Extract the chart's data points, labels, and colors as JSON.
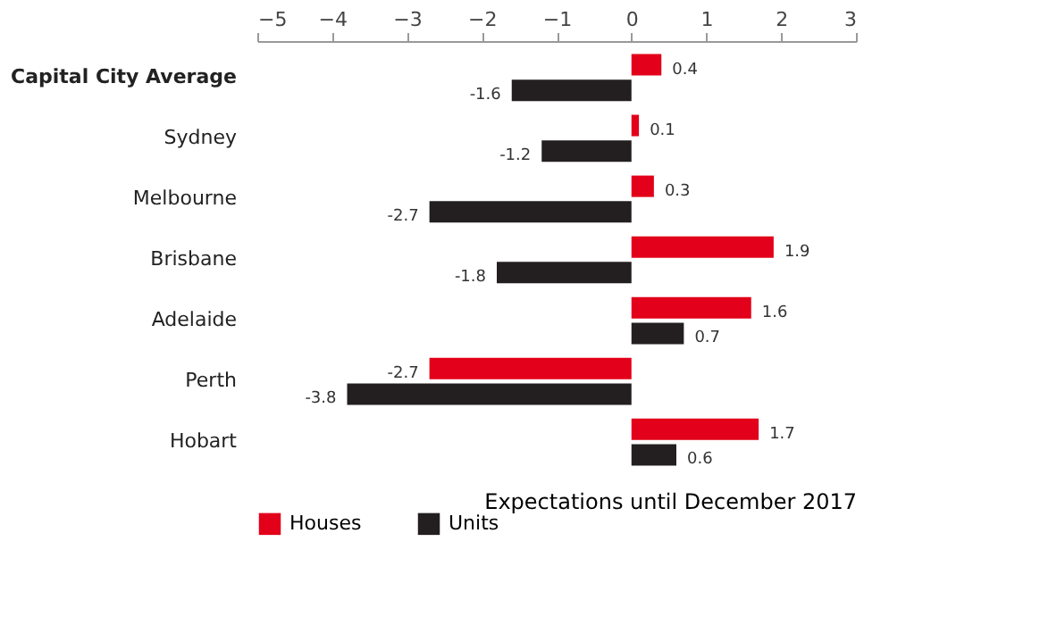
{
  "chart_data": {
    "type": "bar",
    "orientation": "horizontal",
    "categories": [
      "Capital City Average",
      "Sydney",
      "Melbourne",
      "Brisbane",
      "Adelaide",
      "Perth",
      "Hobart"
    ],
    "series": [
      {
        "name": "Houses",
        "color": "#e2001a",
        "values": [
          0.4,
          0.1,
          0.3,
          1.9,
          1.6,
          -2.7,
          1.7
        ]
      },
      {
        "name": "Units",
        "color": "#231f20",
        "values": [
          -1.6,
          -1.2,
          -2.7,
          -1.8,
          0.7,
          -3.8,
          0.6
        ]
      }
    ],
    "xlim": [
      -5,
      3
    ],
    "xticks": [
      -5,
      -4,
      -3,
      -2,
      -1,
      0,
      1,
      2,
      3
    ],
    "data_labels": true,
    "grid": false,
    "legend": "bottom",
    "annotations": [
      "Expectations until December 2017"
    ]
  }
}
